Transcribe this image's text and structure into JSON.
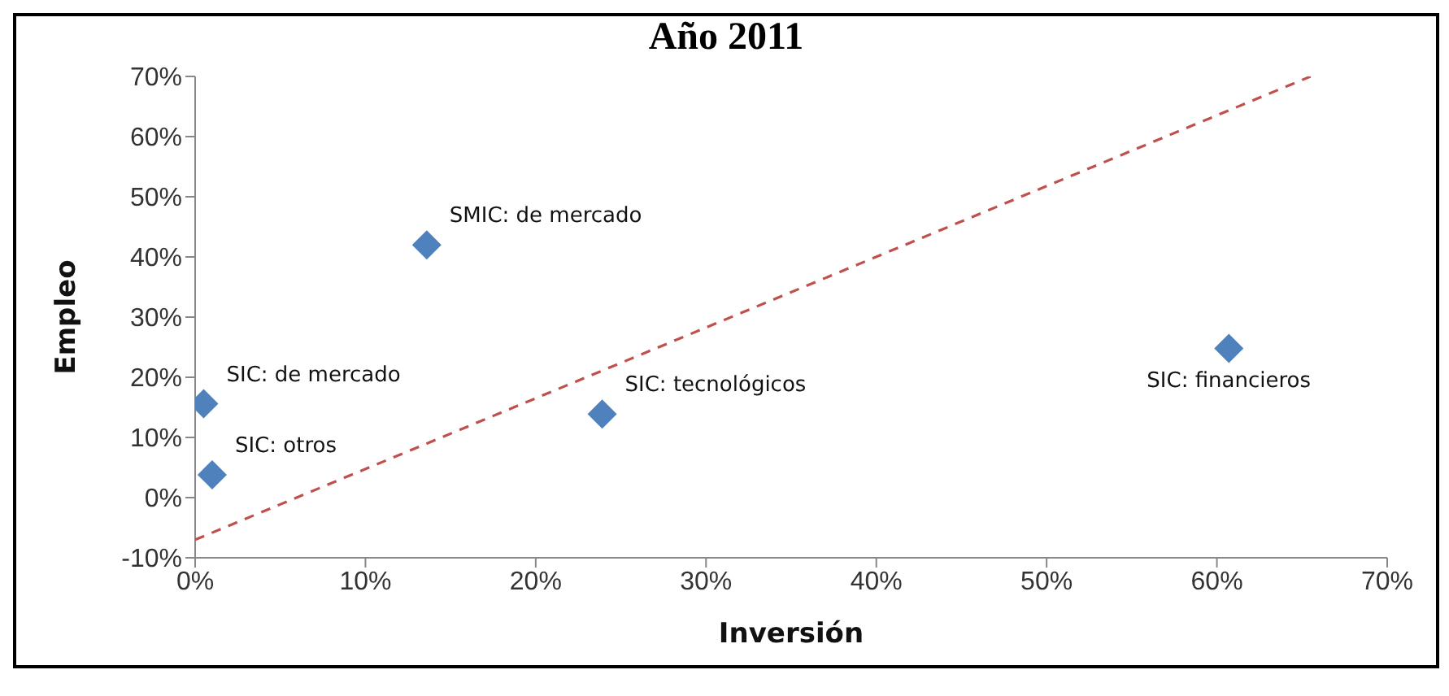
{
  "chart_data": {
    "type": "scatter",
    "title": "Año 2011",
    "xlabel": "Inversión",
    "ylabel": "Empleo",
    "marker": "diamond",
    "grid": false,
    "legend": false,
    "xlim": [
      0,
      70
    ],
    "xticks": [
      {
        "value": 0,
        "label": "0%"
      },
      {
        "value": 10,
        "label": "10%"
      },
      {
        "value": 20,
        "label": "20%"
      },
      {
        "value": 30,
        "label": "30%"
      },
      {
        "value": 40,
        "label": "40%"
      },
      {
        "value": 50,
        "label": "50%"
      },
      {
        "value": 60,
        "label": "60%"
      },
      {
        "value": 70,
        "label": "70%"
      }
    ],
    "ylim": [
      -10,
      70
    ],
    "yticks": [
      {
        "value": -10,
        "label": "-10%"
      },
      {
        "value": 0,
        "label": "0%"
      },
      {
        "value": 10,
        "label": "10%"
      },
      {
        "value": 20,
        "label": "20%"
      },
      {
        "value": 30,
        "label": "30%"
      },
      {
        "value": 40,
        "label": "40%"
      },
      {
        "value": 50,
        "label": "50%"
      },
      {
        "value": 60,
        "label": "60%"
      },
      {
        "value": 70,
        "label": "70%"
      }
    ],
    "series": [
      {
        "type": "scatter",
        "color": "#4f81bd",
        "x": [
          13.6,
          0.5,
          1.0,
          23.9,
          60.7
        ],
        "values": [
          42,
          15.6,
          3.8,
          13.9,
          24.8
        ]
      },
      {
        "type": "line",
        "color": "#c0504d",
        "line_style": "dashed",
        "marker": "none",
        "x": [
          0,
          65.5
        ],
        "values": [
          -7,
          70
        ]
      }
    ],
    "annotations": [
      {
        "text": "SMIC: de mercado",
        "x": 13.6,
        "y": 42
      },
      {
        "text": "SIC: de mercado",
        "x": 0.5,
        "y": 15.6
      },
      {
        "text": "SIC: otros",
        "x": 1.0,
        "y": 3.8
      },
      {
        "text": "SIC: tecnológicos",
        "x": 23.9,
        "y": 13.9
      },
      {
        "text": "SIC: financieros",
        "x": 60.7,
        "y": 24.8
      }
    ]
  }
}
